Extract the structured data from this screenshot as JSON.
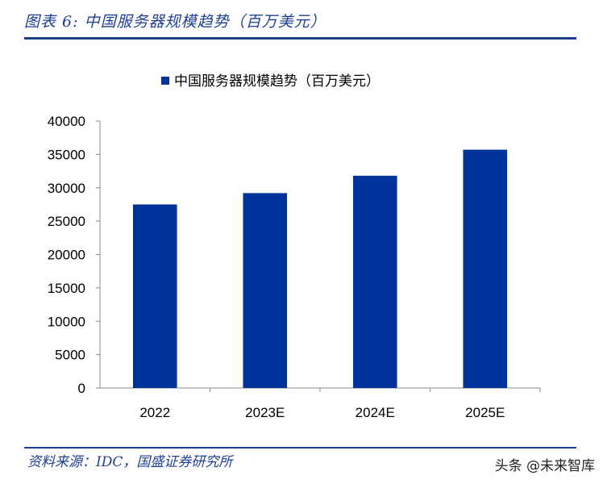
{
  "header": {
    "figure_title": "图表 6:   中国服务器规模趋势（百万美元）"
  },
  "footer": {
    "source": "资料来源：IDC，国盛证券研究所",
    "watermark": "头条 @未来智库"
  },
  "colors": {
    "bar": "#003399",
    "accent": "#1f3f93"
  },
  "chart_data": {
    "type": "bar",
    "title": "",
    "categories": [
      "2022",
      "2023E",
      "2024E",
      "2025E"
    ],
    "series": [
      {
        "name": "中国服务器规模趋势（百万美元）",
        "values": [
          27500,
          29200,
          31800,
          35700
        ]
      }
    ],
    "xlabel": "",
    "ylabel": "",
    "ylim": [
      0,
      40000
    ],
    "yticks": [
      0,
      5000,
      10000,
      15000,
      20000,
      25000,
      30000,
      35000,
      40000
    ],
    "legend": "top-center",
    "grid": false
  }
}
